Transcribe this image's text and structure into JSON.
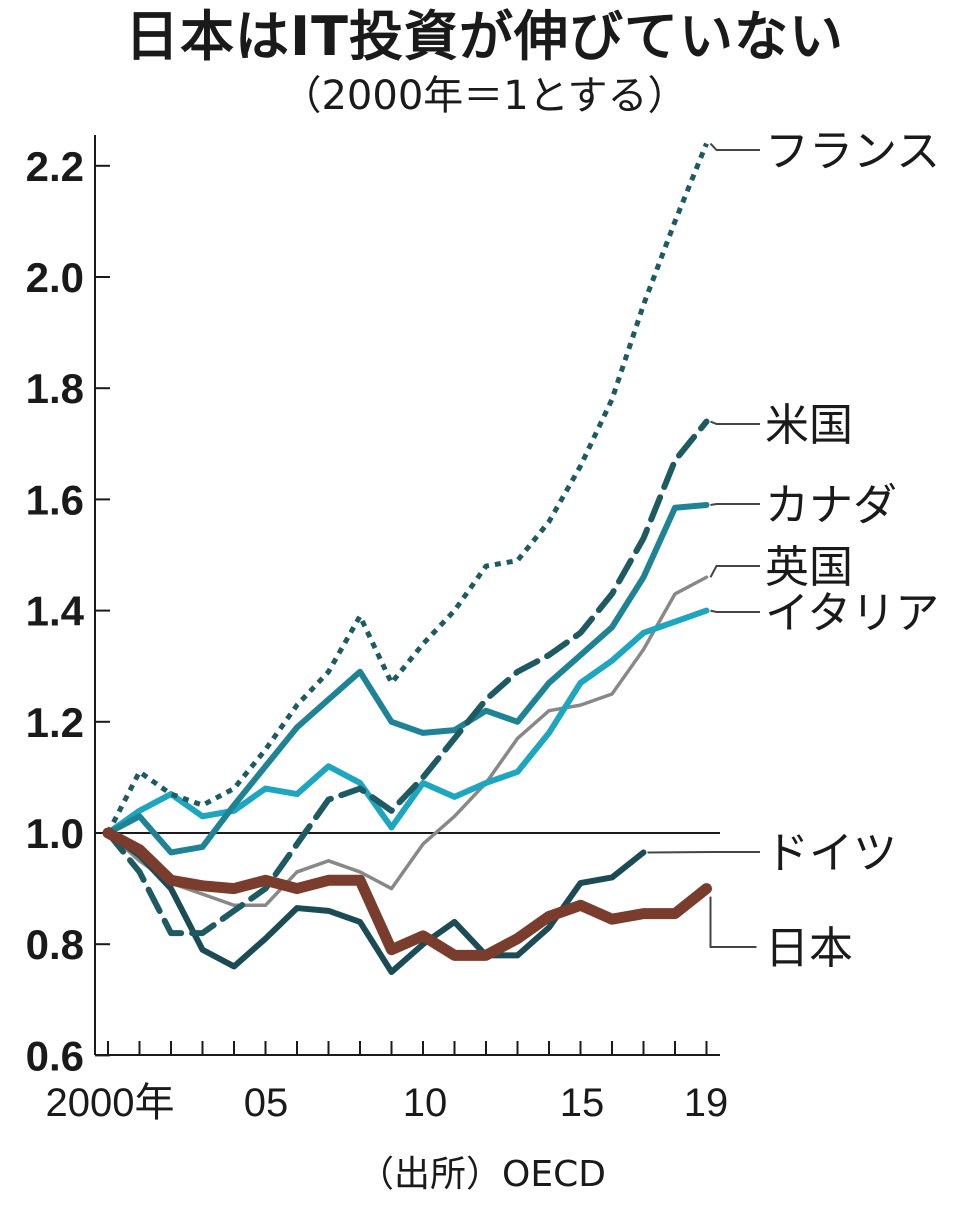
{
  "chart_data": {
    "type": "line",
    "title": "日本はIT投資が伸びていない",
    "subtitle": "（2000年＝1とする）",
    "source": "（出所）OECD",
    "x": [
      2000,
      2001,
      2002,
      2003,
      2004,
      2005,
      2006,
      2007,
      2008,
      2009,
      2010,
      2011,
      2012,
      2013,
      2014,
      2015,
      2016,
      2017,
      2018,
      2019
    ],
    "x_tick_labels": [
      {
        "x": 2000,
        "label": "2000年"
      },
      {
        "x": 2005,
        "label": "05"
      },
      {
        "x": 2010,
        "label": "10"
      },
      {
        "x": 2015,
        "label": "15"
      },
      {
        "x": 2019,
        "label": "19"
      }
    ],
    "y_ticks": [
      "0.6",
      "0.8",
      "1.0",
      "1.2",
      "1.4",
      "1.6",
      "1.8",
      "2.0",
      "2.2"
    ],
    "ylim": [
      0.6,
      2.25
    ],
    "reference_line": 1.0,
    "series": [
      {
        "name": "フランス",
        "color": "#1e5a62",
        "style": "dotted",
        "values": [
          1.0,
          1.11,
          1.07,
          1.05,
          1.08,
          1.15,
          1.23,
          1.29,
          1.39,
          1.27,
          1.34,
          1.4,
          1.48,
          1.49,
          1.56,
          1.66,
          1.78,
          1.95,
          2.1,
          2.24
        ]
      },
      {
        "name": "米国",
        "color": "#1e5a62",
        "style": "dashed",
        "values": [
          1.0,
          0.93,
          0.82,
          0.82,
          0.86,
          0.9,
          0.98,
          1.06,
          1.08,
          1.04,
          1.1,
          1.17,
          1.24,
          1.29,
          1.32,
          1.36,
          1.43,
          1.53,
          1.67,
          1.74
        ]
      },
      {
        "name": "カナダ",
        "color": "#1f8395",
        "style": "solid",
        "values": [
          1.0,
          1.03,
          0.965,
          0.975,
          1.05,
          1.12,
          1.19,
          1.24,
          1.29,
          1.2,
          1.18,
          1.185,
          1.22,
          1.2,
          1.27,
          1.32,
          1.37,
          1.46,
          1.585,
          1.59
        ]
      },
      {
        "name": "英国",
        "color": "#888888",
        "style": "thin",
        "values": [
          1.0,
          0.95,
          0.91,
          0.89,
          0.87,
          0.87,
          0.93,
          0.95,
          0.93,
          0.9,
          0.98,
          1.03,
          1.09,
          1.17,
          1.22,
          1.23,
          1.25,
          1.33,
          1.43,
          1.46
        ]
      },
      {
        "name": "イタリア",
        "color": "#1ea5c0",
        "style": "solid",
        "values": [
          1.0,
          1.04,
          1.07,
          1.03,
          1.04,
          1.08,
          1.07,
          1.12,
          1.09,
          1.01,
          1.09,
          1.065,
          1.09,
          1.11,
          1.18,
          1.27,
          1.31,
          1.36,
          1.38,
          1.4
        ]
      },
      {
        "name": "ドイツ",
        "color": "#1b4b55",
        "style": "solid",
        "values": [
          1.0,
          0.96,
          0.9,
          0.79,
          0.76,
          0.81,
          0.865,
          0.86,
          0.84,
          0.75,
          0.8,
          0.84,
          0.78,
          0.78,
          0.83,
          0.91,
          0.92,
          0.965,
          null,
          null
        ]
      },
      {
        "name": "日本",
        "color": "#7a3c2c",
        "style": "thick",
        "values": [
          1.0,
          0.97,
          0.915,
          0.905,
          0.9,
          0.915,
          0.9,
          0.915,
          0.915,
          0.79,
          0.815,
          0.78,
          0.78,
          0.81,
          0.85,
          0.87,
          0.845,
          0.855,
          0.855,
          0.9
        ]
      }
    ]
  }
}
